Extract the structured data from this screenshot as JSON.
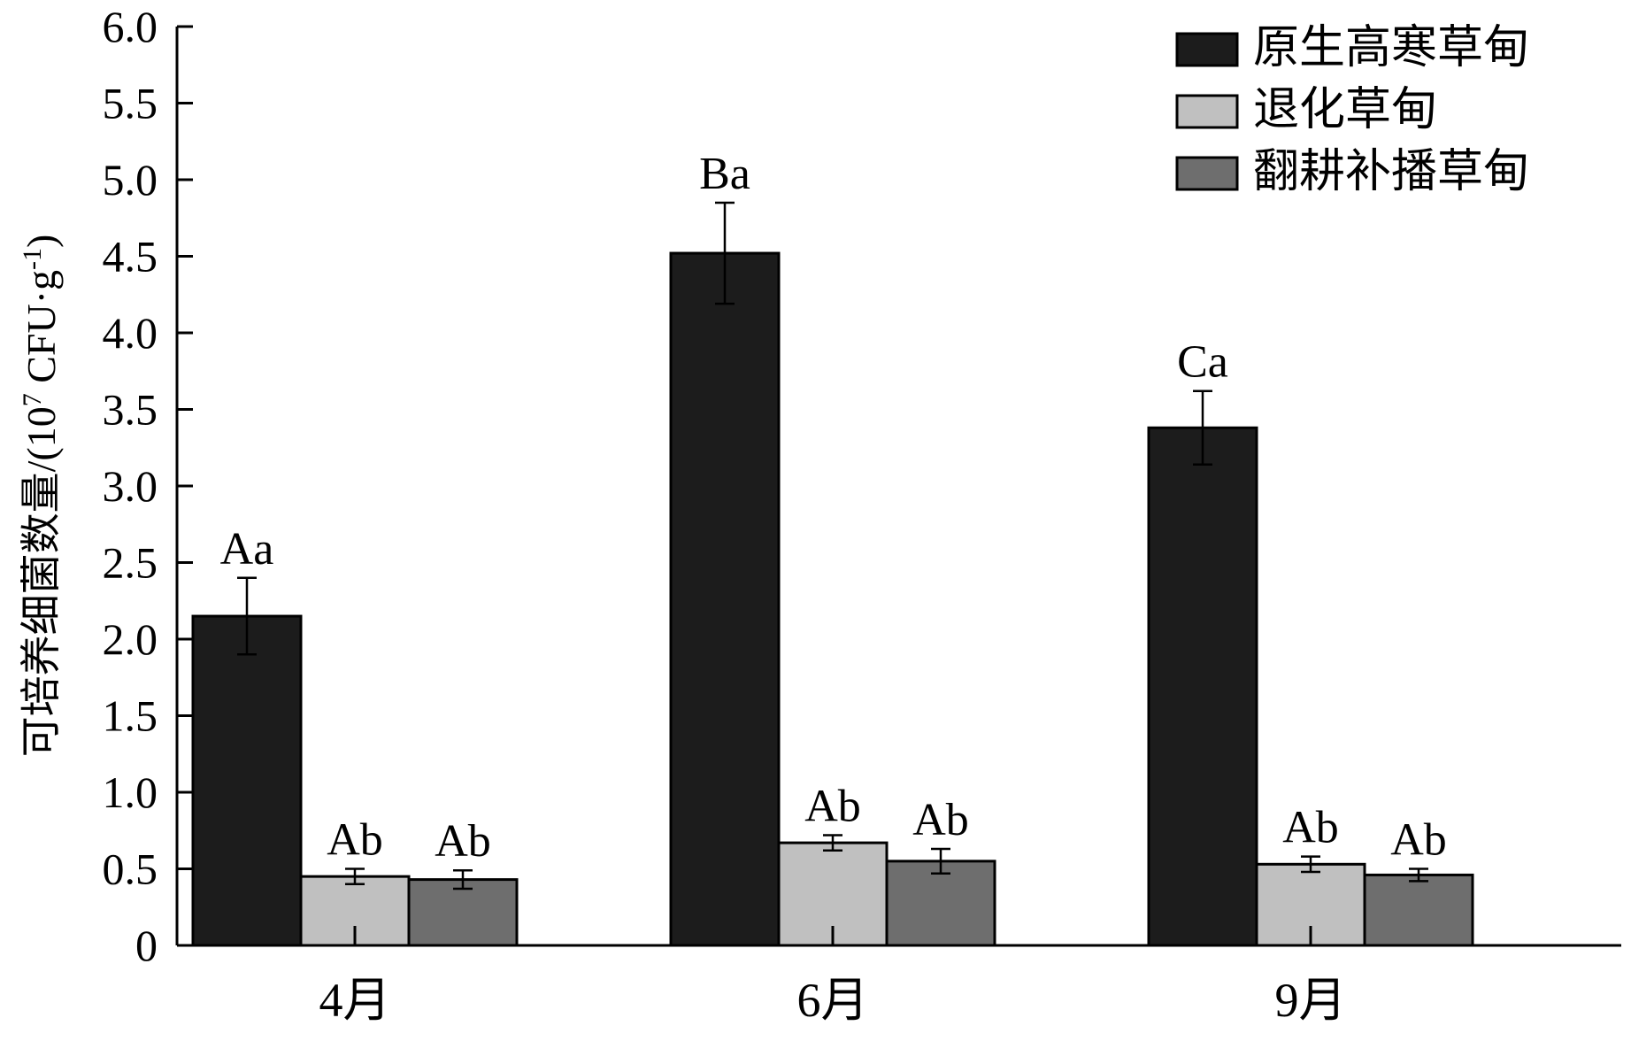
{
  "chart_data": {
    "type": "bar",
    "title": "",
    "xlabel": "",
    "ylabel": "可培养细菌数量/(10⁷ CFU·g⁻¹)",
    "ylabel_parts": {
      "main": "可培养细菌数量/(10",
      "sup1": "7",
      "mid": " CFU·g",
      "sup2": "-1",
      "end": ")"
    },
    "ylim": [
      0,
      6.0
    ],
    "yticks": [
      {
        "value": 0,
        "label": "0"
      },
      {
        "value": 0.5,
        "label": "0.5"
      },
      {
        "value": 1.0,
        "label": "1.0"
      },
      {
        "value": 1.5,
        "label": "1.5"
      },
      {
        "value": 2.0,
        "label": "2.0"
      },
      {
        "value": 2.5,
        "label": "2.5"
      },
      {
        "value": 3.0,
        "label": "3.0"
      },
      {
        "value": 3.5,
        "label": "3.5"
      },
      {
        "value": 4.0,
        "label": "4.0"
      },
      {
        "value": 4.5,
        "label": "4.5"
      },
      {
        "value": 5.0,
        "label": "5.0"
      },
      {
        "value": 5.5,
        "label": "5.5"
      },
      {
        "value": 6.0,
        "label": "6.0"
      }
    ],
    "categories": [
      "4月",
      "6月",
      "9月"
    ],
    "legend_position": "top-right",
    "grid": false,
    "series": [
      {
        "name": "原生高寒草甸",
        "color": "#1c1c1c",
        "values": [
          2.15,
          4.52,
          3.38
        ],
        "errors": [
          0.25,
          0.33,
          0.24
        ],
        "sig": [
          "Aa",
          "Ba",
          "Ca"
        ]
      },
      {
        "name": "退化草甸",
        "color": "#c0c0c0",
        "values": [
          0.45,
          0.67,
          0.53
        ],
        "errors": [
          0.05,
          0.05,
          0.05
        ],
        "sig": [
          "Ab",
          "Ab",
          "Ab"
        ]
      },
      {
        "name": "翻耕补播草甸",
        "color": "#6e6e6e",
        "values": [
          0.43,
          0.55,
          0.46
        ],
        "errors": [
          0.06,
          0.08,
          0.04
        ],
        "sig": [
          "Ab",
          "Ab",
          "Ab"
        ]
      }
    ]
  }
}
